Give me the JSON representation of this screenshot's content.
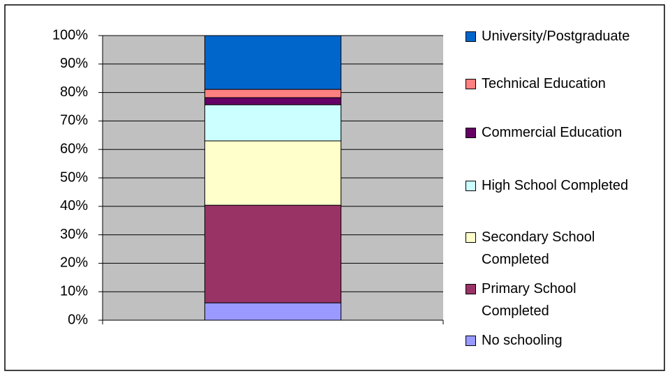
{
  "chart_data": {
    "type": "stacked_bar_100",
    "categories": [
      null
    ],
    "series": [
      {
        "name": "No schooling",
        "color": "#9999ff",
        "values": [
          6.1
        ]
      },
      {
        "name": "Primary School Completed",
        "color": "#993366",
        "values": [
          34.3
        ]
      },
      {
        "name": "Secondary School Completed",
        "color": "#ffffcc",
        "values": [
          22.6
        ]
      },
      {
        "name": "High School Completed",
        "color": "#ccffff",
        "values": [
          12.7
        ]
      },
      {
        "name": "Commercial Education",
        "color": "#660066",
        "values": [
          2.5
        ]
      },
      {
        "name": "Technical Education",
        "color": "#ff8080",
        "values": [
          2.9
        ]
      },
      {
        "name": "University/Postgraduate",
        "color": "#0066cc",
        "values": [
          18.9
        ]
      }
    ],
    "ylim": [
      0,
      100
    ],
    "yticks": [
      {
        "value": 0,
        "label": "0%"
      },
      {
        "value": 10,
        "label": "10%"
      },
      {
        "value": 20,
        "label": "20%"
      },
      {
        "value": 30,
        "label": "30%"
      },
      {
        "value": 40,
        "label": "40%"
      },
      {
        "value": 50,
        "label": "50%"
      },
      {
        "value": 60,
        "label": "60%"
      },
      {
        "value": 70,
        "label": "70%"
      },
      {
        "value": 80,
        "label": "80%"
      },
      {
        "value": 90,
        "label": "90%"
      },
      {
        "value": 100,
        "label": "100%"
      }
    ],
    "grid": true,
    "legend": "right",
    "plot_background": "#c0c0c0"
  }
}
